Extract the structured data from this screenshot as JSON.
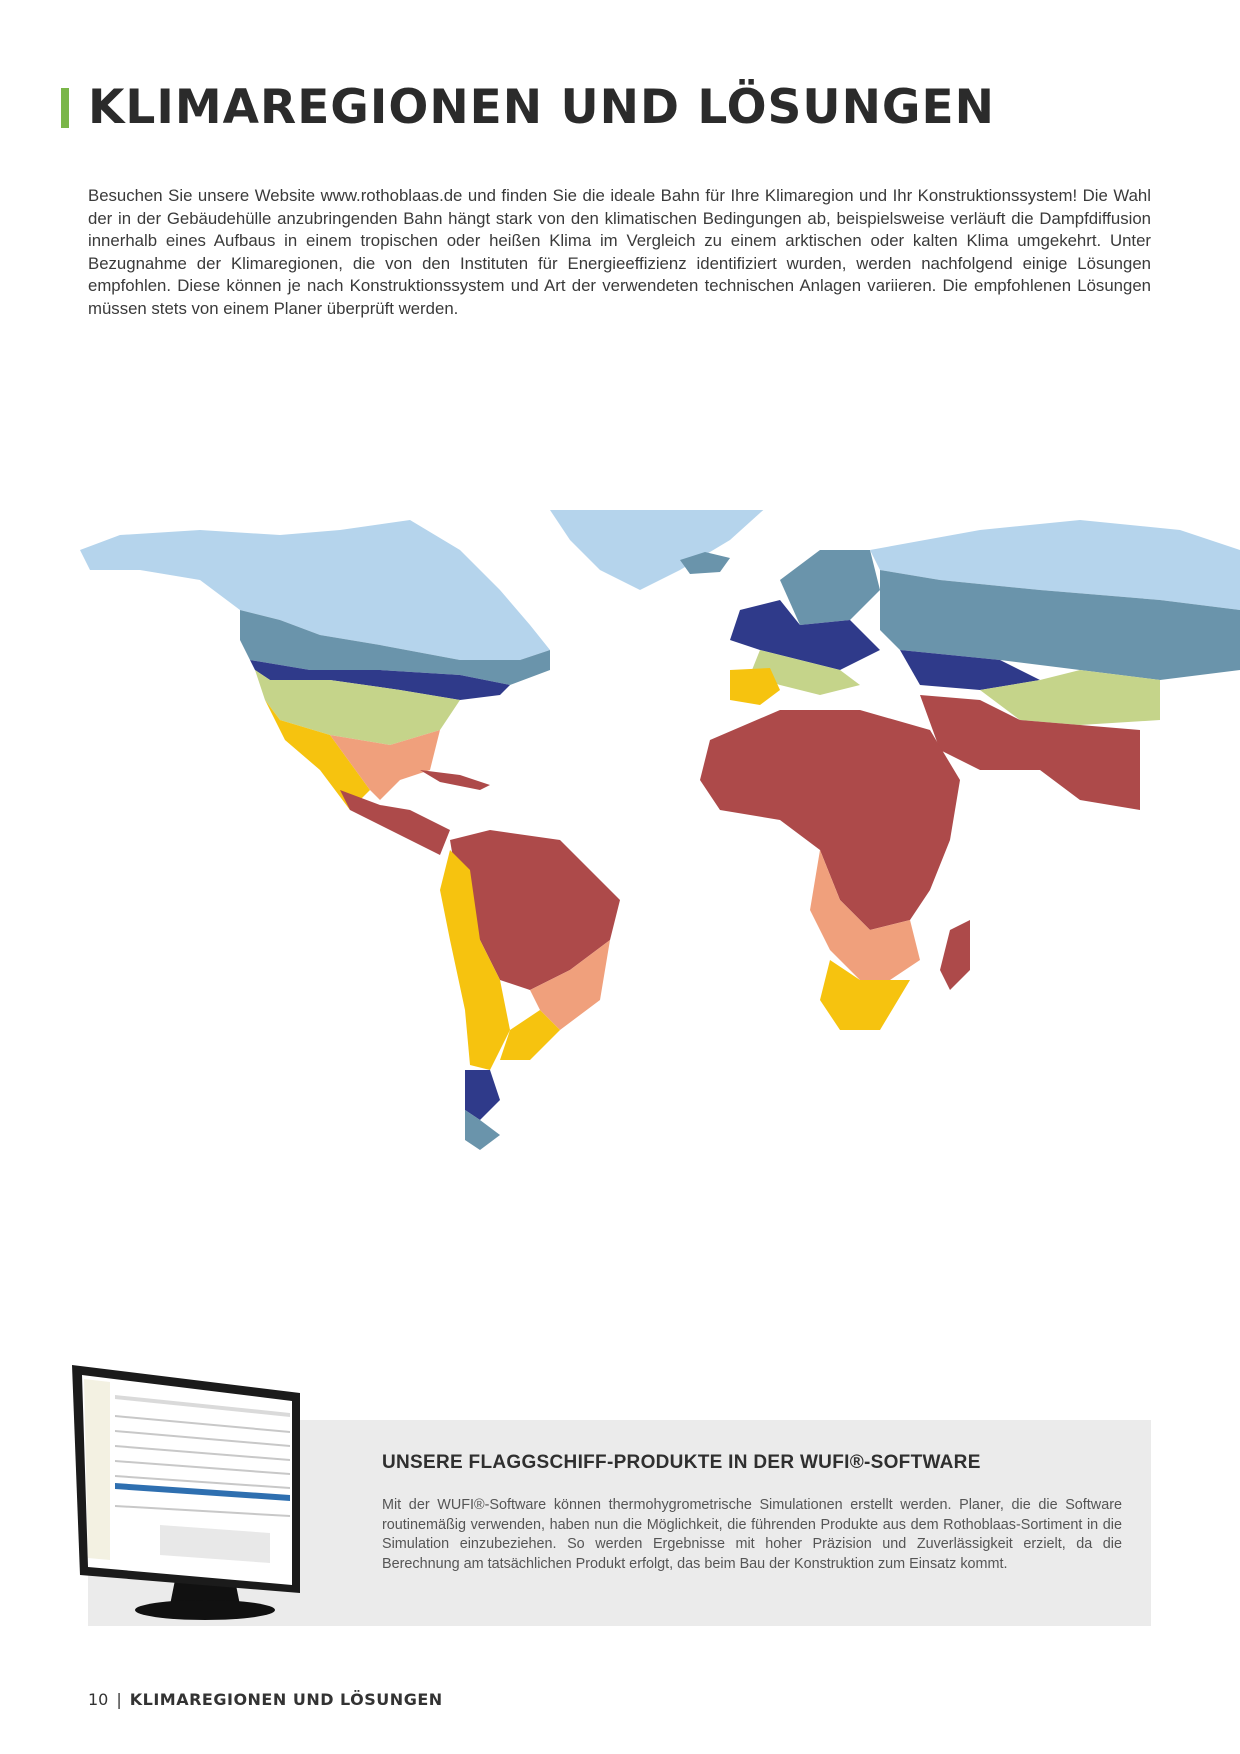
{
  "page": {
    "title": "KLIMAREGIONEN UND LÖSUNGEN",
    "intro": "Besuchen Sie unsere Website www.rothoblaas.de und finden Sie die ideale Bahn für Ihre Klimaregion und Ihr Konstruktionssystem! Die Wahl der in der Gebäudehülle anzubringenden Bahn hängt stark von den klimatischen Bedingungen ab, beispielsweise verläuft die Dampfdiffusion innerhalb eines Aufbaus in einem tropischen oder heißen Klima im Vergleich zu einem arktischen oder kalten Klima umgekehrt. Unter Bezugnahme der Klimaregionen, die von den Instituten für Energieeffizienz identifiziert wurden, werden nachfolgend einige Lösungen empfohlen. Diese können je nach Konstruktionssystem und Art der verwendeten technischen Anlagen variieren. Die empfohlenen Lösungen müssen stets von einem Planer überprüft werden."
  },
  "map": {
    "colors": {
      "subarctic": "#b5d4ec",
      "cold": "#6a94ab",
      "cool_humid": "#2f3a8a",
      "mixed": "#c5d48a",
      "hot_dry": "#f6c30f",
      "warm_humid": "#f0a07c",
      "tropical": "#ad4a4a"
    }
  },
  "wufi": {
    "heading": "UNSERE FLAGGSCHIFF-PRODUKTE IN DER WUFI®-SOFTWARE",
    "text": "Mit der WUFI®-Software können thermohygrometrische Simulationen erstellt werden. Planer, die die Software routinemäßig verwenden, haben nun die Möglichkeit, die führenden Produkte aus dem Rothoblaas-Sortiment in die Simulation einzubeziehen. So werden Ergebnisse mit hoher Präzision und Zuverlässigkeit erzielt, da die Berechnung am tatsächlichen Produkt erfolgt, das beim Bau der Konstruktion zum Einsatz kommt."
  },
  "footer": {
    "page_number": "10",
    "separator": "|",
    "section": "KLIMAREGIONEN UND LÖSUNGEN"
  }
}
